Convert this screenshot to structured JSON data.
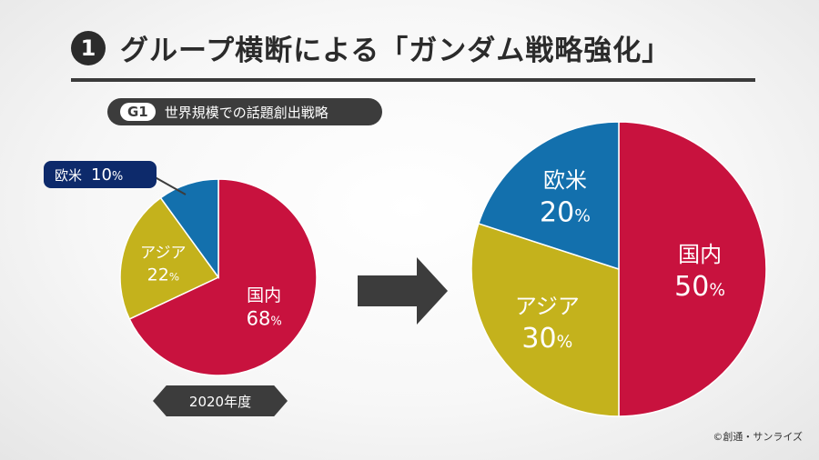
{
  "title": {
    "number": "1",
    "text": "グループ横断による「ガンダム戦略強化」"
  },
  "subtitle": {
    "code": "G1",
    "text": "世界規模での話題創出戦略"
  },
  "year_tag": "2020年度",
  "copyright": "©創通・サンライズ",
  "colors": {
    "国内": "#c8123e",
    "アジア": "#c4b21c",
    "欧米": "#1370ad",
    "dark": "#3c3c3c"
  },
  "chart_data": [
    {
      "type": "pie",
      "categories": [
        "国内",
        "アジア",
        "欧米"
      ],
      "values": [
        68,
        22,
        10
      ],
      "unit": "%",
      "label": "2020年度"
    },
    {
      "type": "pie",
      "categories": [
        "国内",
        "アジア",
        "欧米"
      ],
      "values": [
        50,
        30,
        20
      ],
      "unit": "%"
    }
  ]
}
